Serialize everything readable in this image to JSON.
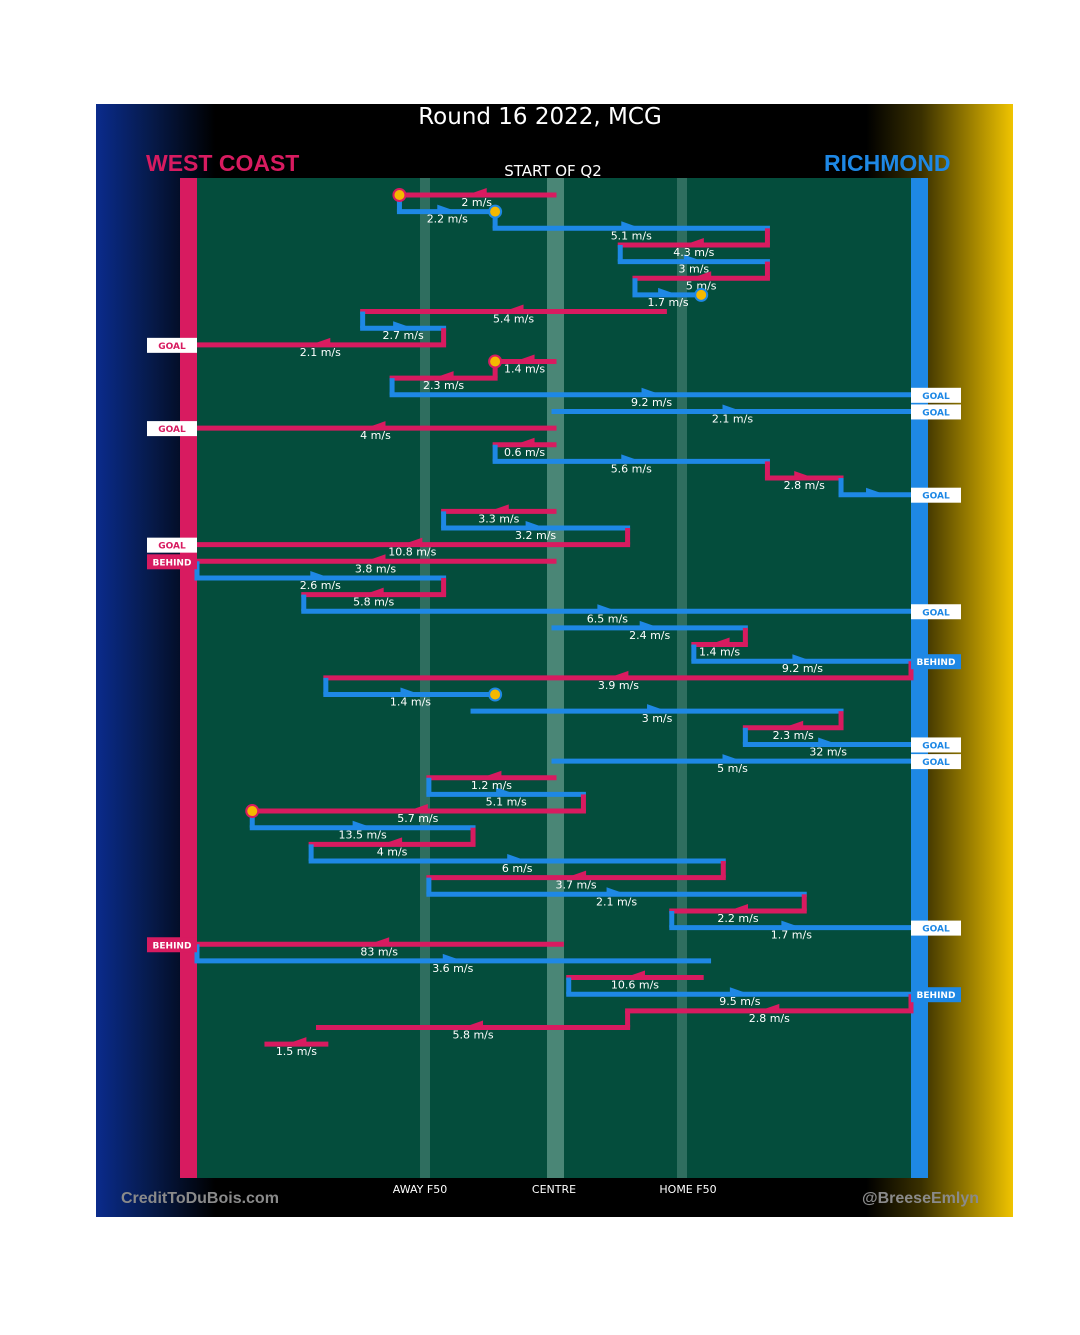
{
  "title": "Round 16 2022, MCG",
  "subtitle": "START OF Q2",
  "teams": {
    "left": "WEST COAST",
    "right": "RICHMOND"
  },
  "colors": {
    "west_coast": "#d81b60",
    "richmond": "#1e88e5",
    "field": "#044d3c",
    "marker": "#f5b800"
  },
  "axis": {
    "x_ticks": [
      "AWAY F50",
      "CENTRE",
      "HOME F50"
    ]
  },
  "credits": {
    "left": "CreditToDuBois.com",
    "right": "@BreeseEmlyn"
  },
  "chart_data": {
    "type": "path",
    "x_positions": [
      "WEST COAST goal",
      "AWAY F50",
      "CENTRE",
      "HOME F50",
      "RICHMOND goal"
    ],
    "chains": [
      {
        "team": "WC",
        "speed": "2 m/s",
        "from": 0,
        "to": -2.1,
        "end": "stop"
      },
      {
        "team": "RI",
        "speed": "2.2 m/s",
        "from": -2.1,
        "to": -0.8,
        "end": "stop"
      },
      {
        "team": "RI",
        "speed": "5.1 m/s",
        "from": -0.8,
        "to": 2.9
      },
      {
        "team": "WC",
        "speed": "4.3 m/s",
        "from": 2.9,
        "to": 0.9
      },
      {
        "team": "RI",
        "speed": "3 m/s",
        "from": 0.9,
        "to": 2.9
      },
      {
        "team": "WC",
        "speed": "5 m/s",
        "from": 2.9,
        "to": 1.1
      },
      {
        "team": "RI",
        "speed": "1.7 m/s",
        "from": 1.1,
        "to": 2.0,
        "end": "stop"
      },
      {
        "team": "WC",
        "speed": "5.4 m/s",
        "from": 1.5,
        "to": -2.6
      },
      {
        "team": "RI",
        "speed": "2.7 m/s",
        "from": -2.6,
        "to": -1.5
      },
      {
        "team": "WC",
        "speed": "2.1 m/s",
        "from": -1.5,
        "to": -4.5,
        "end": "GOAL"
      },
      {
        "team": "WC",
        "speed": "1.4 m/s",
        "from": 0,
        "to": -0.8,
        "end": "stop"
      },
      {
        "team": "WC",
        "speed": "2.3 m/s",
        "from": -0.8,
        "to": -2.2
      },
      {
        "team": "RI",
        "speed": "9.2 m/s",
        "from": -2.2,
        "to": 4.5,
        "end": "GOAL"
      },
      {
        "team": "RI",
        "speed": "2.1 m/s",
        "from": 0,
        "to": 4.5,
        "end": "GOAL"
      },
      {
        "team": "WC",
        "speed": "4 m/s",
        "from": 0,
        "to": -4.5,
        "end": "GOAL"
      },
      {
        "team": "WC",
        "speed": "0.6 m/s",
        "from": 0,
        "to": -0.8
      },
      {
        "team": "RI",
        "speed": "5.6 m/s",
        "from": -0.8,
        "to": 2.9
      },
      {
        "team": "WC",
        "speed": "2.8 m/s",
        "from": 2.9,
        "to": 3.9
      },
      {
        "team": "RI",
        "speed": "",
        "from": 3.9,
        "to": 4.5,
        "end": "GOAL"
      },
      {
        "team": "WC",
        "speed": "3.3 m/s",
        "from": 0,
        "to": -1.5
      },
      {
        "team": "RI",
        "speed": "3.2 m/s",
        "from": -1.5,
        "to": 1.0
      },
      {
        "team": "WC",
        "speed": "10.8 m/s",
        "from": 1.0,
        "to": -4.5,
        "end": "GOAL"
      },
      {
        "team": "WC",
        "speed": "3.8 m/s",
        "from": 0,
        "to": -4.5,
        "end": "BEHIND"
      },
      {
        "team": "RI",
        "speed": "2.6 m/s",
        "from": -4.5,
        "to": -1.5
      },
      {
        "team": "WC",
        "speed": "5.8 m/s",
        "from": -1.5,
        "to": -3.4
      },
      {
        "team": "RI",
        "speed": "6.5 m/s",
        "from": -3.4,
        "to": 4.5,
        "end": "GOAL"
      },
      {
        "team": "RI",
        "speed": "2.4 m/s",
        "from": 0,
        "to": 2.6
      },
      {
        "team": "WC",
        "speed": "1.4 m/s",
        "from": 2.6,
        "to": 1.9
      },
      {
        "team": "RI",
        "speed": "9.2 m/s",
        "from": 1.9,
        "to": 4.5,
        "end": "BEHIND"
      },
      {
        "team": "WC",
        "speed": "3.9 m/s",
        "from": 4.5,
        "to": -3.1
      },
      {
        "team": "RI",
        "speed": "1.4 m/s",
        "from": -3.1,
        "to": -0.8,
        "end": "stop"
      },
      {
        "team": "RI",
        "speed": "3 m/s",
        "from": -1.1,
        "to": 3.9
      },
      {
        "team": "WC",
        "speed": "2.3 m/s",
        "from": 3.9,
        "to": 2.6
      },
      {
        "team": "RI",
        "speed": "32 m/s",
        "from": 2.6,
        "to": 4.5,
        "end": "GOAL"
      },
      {
        "team": "RI",
        "speed": "5 m/s",
        "from": 0,
        "to": 4.5,
        "end": "GOAL"
      },
      {
        "team": "WC",
        "speed": "1.2 m/s",
        "from": 0,
        "to": -1.7
      },
      {
        "team": "RI",
        "speed": "5.1 m/s",
        "from": -1.7,
        "to": 0.4
      },
      {
        "team": "WC",
        "speed": "5.7 m/s",
        "from": 0.4,
        "to": -4.1,
        "end": "stop"
      },
      {
        "team": "RI",
        "speed": "13.5 m/s",
        "from": -4.1,
        "to": -1.1
      },
      {
        "team": "WC",
        "speed": "4 m/s",
        "from": -1.1,
        "to": -3.3
      },
      {
        "team": "RI",
        "speed": "6 m/s",
        "from": -3.3,
        "to": 2.3
      },
      {
        "team": "WC",
        "speed": "3.7 m/s",
        "from": 2.3,
        "to": -1.7
      },
      {
        "team": "RI",
        "speed": "2.1 m/s",
        "from": -1.7,
        "to": 3.4
      },
      {
        "team": "WC",
        "speed": "2.2 m/s",
        "from": 3.4,
        "to": 1.6
      },
      {
        "team": "RI",
        "speed": "1.7 m/s",
        "from": 1.6,
        "to": 4.5,
        "end": "GOAL"
      },
      {
        "team": "WC",
        "speed": "83 m/s",
        "from": 0.1,
        "to": -4.5,
        "end": "BEHIND"
      },
      {
        "team": "RI",
        "speed": "3.6 m/s",
        "from": -4.5,
        "to": 2.1
      },
      {
        "team": "WC",
        "speed": "10.6 m/s",
        "from": 2.0,
        "to": 0.2
      },
      {
        "team": "RI",
        "speed": "9.5 m/s",
        "from": 0.2,
        "to": 4.5,
        "end": "BEHIND"
      },
      {
        "team": "WC",
        "speed": "2.8 m/s",
        "from": 4.5,
        "to": 1.0
      },
      {
        "team": "WC",
        "speed": "5.8 m/s",
        "from": 1.0,
        "to": -3.2
      },
      {
        "team": "WC",
        "speed": "1.5 m/s",
        "from": -3.1,
        "to": -3.9
      }
    ]
  }
}
